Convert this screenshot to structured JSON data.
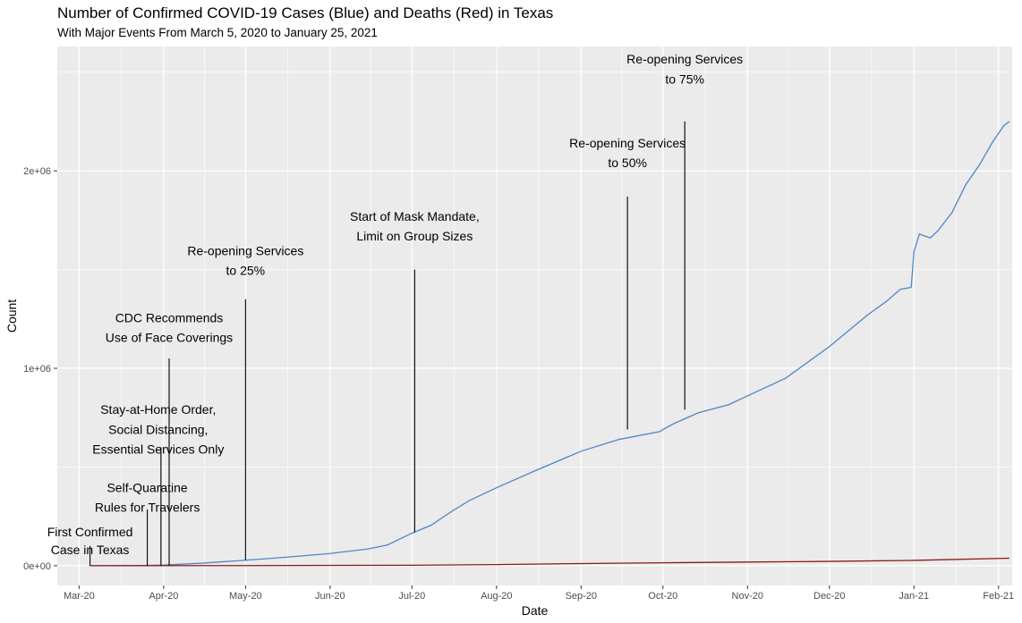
{
  "chart_data": {
    "type": "line",
    "title": "Number of Confirmed COVID-19 Cases (Blue) and Deaths (Red) in Texas",
    "subtitle": "With Major Events From March 5, 2020 to January 25, 2021",
    "xlabel": "Date",
    "ylabel": "Count",
    "x_range": [
      "2020-02-22",
      "2021-02-06"
    ],
    "ylim": [
      -100000,
      2630000
    ],
    "grid": true,
    "x_ticks": [
      {
        "date": "2020-03-01",
        "label": "Mar-20"
      },
      {
        "date": "2020-04-01",
        "label": "Apr-20"
      },
      {
        "date": "2020-05-01",
        "label": "May-20"
      },
      {
        "date": "2020-06-01",
        "label": "Jun-20"
      },
      {
        "date": "2020-07-01",
        "label": "Jul-20"
      },
      {
        "date": "2020-08-01",
        "label": "Aug-20"
      },
      {
        "date": "2020-09-01",
        "label": "Sep-20"
      },
      {
        "date": "2020-10-01",
        "label": "Oct-20"
      },
      {
        "date": "2020-11-01",
        "label": "Nov-20"
      },
      {
        "date": "2020-12-01",
        "label": "Dec-20"
      },
      {
        "date": "2021-01-01",
        "label": "Jan-21"
      },
      {
        "date": "2021-02-01",
        "label": "Feb-21"
      }
    ],
    "y_ticks": [
      {
        "value": 0,
        "label": "0e+00"
      },
      {
        "value": 1000000,
        "label": "1e+06"
      },
      {
        "value": 2000000,
        "label": "2e+06"
      }
    ],
    "series": [
      {
        "color": "#4f86c6",
        "points": [
          [
            "2020-03-05",
            0
          ],
          [
            "2020-03-25",
            1000
          ],
          [
            "2020-04-01",
            3300
          ],
          [
            "2020-04-15",
            13000
          ],
          [
            "2020-05-01",
            28000
          ],
          [
            "2020-05-15",
            42000
          ],
          [
            "2020-06-01",
            62000
          ],
          [
            "2020-06-15",
            85000
          ],
          [
            "2020-06-22",
            105000
          ],
          [
            "2020-07-01",
            165000
          ],
          [
            "2020-07-08",
            205000
          ],
          [
            "2020-07-15",
            270000
          ],
          [
            "2020-07-22",
            330000
          ],
          [
            "2020-08-01",
            395000
          ],
          [
            "2020-08-15",
            480000
          ],
          [
            "2020-09-01",
            580000
          ],
          [
            "2020-09-15",
            640000
          ],
          [
            "2020-09-30",
            680000
          ],
          [
            "2020-10-01",
            690000
          ],
          [
            "2020-10-05",
            720000
          ],
          [
            "2020-10-14",
            775000
          ],
          [
            "2020-10-25",
            815000
          ],
          [
            "2020-11-01",
            860000
          ],
          [
            "2020-11-15",
            950000
          ],
          [
            "2020-12-01",
            1110000
          ],
          [
            "2020-12-15",
            1270000
          ],
          [
            "2020-12-22",
            1340000
          ],
          [
            "2020-12-27",
            1400000
          ],
          [
            "2020-12-31",
            1410000
          ],
          [
            "2021-01-01",
            1590000
          ],
          [
            "2021-01-03",
            1680000
          ],
          [
            "2021-01-07",
            1660000
          ],
          [
            "2021-01-10",
            1700000
          ],
          [
            "2021-01-15",
            1790000
          ],
          [
            "2021-01-20",
            1930000
          ],
          [
            "2021-01-25",
            2030000
          ],
          [
            "2021-01-30",
            2150000
          ],
          [
            "2021-02-03",
            2230000
          ],
          [
            "2021-02-05",
            2250000
          ]
        ]
      },
      {
        "color": "#8b1a1a",
        "points": [
          [
            "2020-03-05",
            0
          ],
          [
            "2020-05-01",
            800
          ],
          [
            "2020-07-01",
            2500
          ],
          [
            "2020-08-01",
            6000
          ],
          [
            "2020-09-01",
            11000
          ],
          [
            "2020-10-01",
            15000
          ],
          [
            "2020-11-01",
            18500
          ],
          [
            "2020-12-01",
            22000
          ],
          [
            "2021-01-01",
            27000
          ],
          [
            "2021-02-05",
            38000
          ]
        ]
      }
    ],
    "annotations": [
      {
        "date": "2020-03-05",
        "top": 100000,
        "bottom": 0,
        "lines": [
          "First Confirmed",
          "Case in Texas"
        ],
        "text_x": "2020-03-05",
        "text_y": [
          165000,
          75000
        ]
      },
      {
        "date": "2020-03-26",
        "top": 285000,
        "bottom": 0,
        "lines": [
          "Self-Quaratine",
          "Rules for Travelers"
        ],
        "text_x": "2020-03-26",
        "text_y": [
          390000,
          290000
        ]
      },
      {
        "date": "2020-03-31",
        "top": 600000,
        "bottom": 0,
        "lines": [
          "Stay-at-Home Order,",
          "Social Distancing,",
          "Essential Services Only"
        ],
        "text_x": "2020-03-30",
        "text_y": [
          785000,
          685000,
          585000
        ]
      },
      {
        "date": "2020-04-03",
        "top": 1050000,
        "bottom": 0,
        "lines": [
          "CDC Recommends",
          "Use of Face Coverings"
        ],
        "text_x": "2020-04-03",
        "text_y": [
          1250000,
          1150000
        ]
      },
      {
        "date": "2020-05-01",
        "top": 1350000,
        "bottom": 28000,
        "lines": [
          "Re-opening Services",
          "to 25%"
        ],
        "text_x": "2020-05-01",
        "text_y": [
          1590000,
          1490000
        ]
      },
      {
        "date": "2020-07-02",
        "top": 1500000,
        "bottom": 170000,
        "lines": [
          "Start of Mask Mandate,",
          "Limit on Group Sizes"
        ],
        "text_x": "2020-07-02",
        "text_y": [
          1765000,
          1665000
        ]
      },
      {
        "date": "2020-09-18",
        "top": 1870000,
        "bottom": 690000,
        "lines": [
          "Re-opening Services",
          "to 50%"
        ],
        "text_x": "2020-09-18",
        "text_y": [
          2135000,
          2035000
        ]
      },
      {
        "date": "2020-10-09",
        "top": 2250000,
        "bottom": 790000,
        "lines": [
          "Re-opening Services",
          "to 75%"
        ],
        "text_x": "2020-10-09",
        "text_y": [
          2560000,
          2460000
        ]
      }
    ]
  }
}
